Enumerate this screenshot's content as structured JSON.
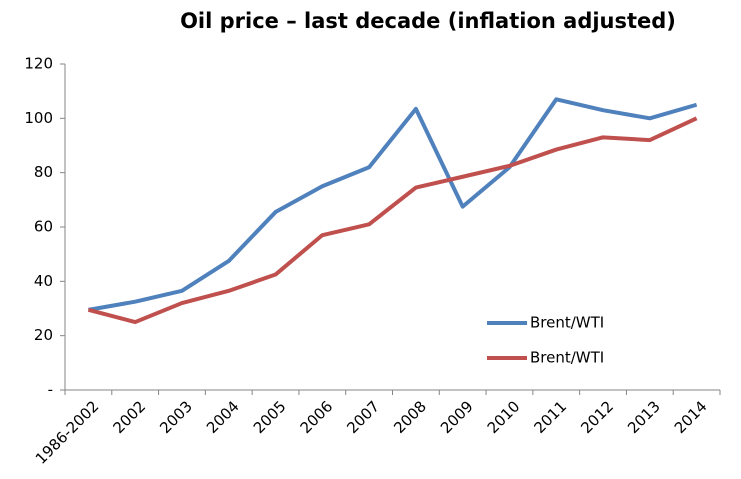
{
  "chart_data": {
    "type": "line",
    "title": "Oil price – last decade (inflation adjusted)",
    "categories": [
      "1986-2002",
      "2002",
      "2003",
      "2004",
      "2005",
      "2006",
      "2007",
      "2008",
      "2009",
      "2010",
      "2011",
      "2012",
      "2013",
      "2014"
    ],
    "series": [
      {
        "name": "Brent/WTI",
        "color": "#4f81bd",
        "values": [
          29.5,
          32.5,
          36.5,
          47.5,
          65.5,
          75,
          82,
          103.5,
          67.5,
          82,
          107,
          103,
          100,
          105
        ]
      },
      {
        "name": "Brent/WTI",
        "color": "#c0504d",
        "values": [
          29.5,
          25,
          32,
          36.5,
          42.5,
          57,
          61,
          74.5,
          78.5,
          82.5,
          88.5,
          93,
          92,
          100
        ]
      }
    ],
    "ylim": [
      0,
      120
    ],
    "yticks": [
      {
        "value": 0,
        "label": "-"
      },
      20,
      40,
      60,
      80,
      100,
      120
    ],
    "grid": false
  }
}
